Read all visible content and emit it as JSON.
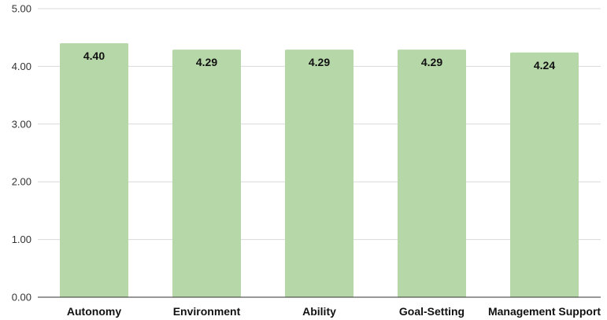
{
  "chart_data": {
    "type": "bar",
    "categories": [
      "Autonomy",
      "Environment",
      "Ability",
      "Goal-Setting",
      "Management Support"
    ],
    "values": [
      4.4,
      4.29,
      4.29,
      4.29,
      4.24
    ],
    "data_labels": [
      "4.40",
      "4.29",
      "4.29",
      "4.29",
      "4.24"
    ],
    "yticks": [
      "0.00",
      "1.00",
      "2.00",
      "3.00",
      "4.00",
      "5.00"
    ],
    "ylim": [
      0,
      5
    ],
    "title": "",
    "xlabel": "",
    "ylabel": "",
    "grid": true,
    "legend": "none",
    "bar_color": "#b6d7a8",
    "grid_color": "#d9d9d9",
    "axis_color": "#333333"
  }
}
